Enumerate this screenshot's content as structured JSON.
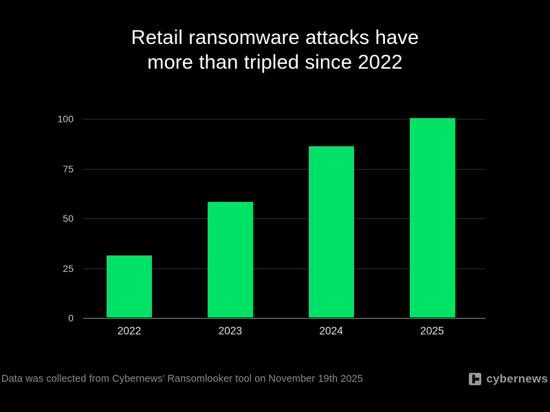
{
  "title": {
    "line1": "Retail ransomware attacks have",
    "line2": "more than tripled since 2022"
  },
  "chart_data": {
    "type": "bar",
    "title": "Retail ransomware attacks have more than tripled since 2022",
    "categories": [
      "2022",
      "2023",
      "2024",
      "2025"
    ],
    "values": [
      31,
      58,
      86,
      100
    ],
    "xlabel": "",
    "ylabel": "",
    "ylim": [
      0,
      100
    ],
    "yticks": [
      0,
      25,
      50,
      75,
      100
    ],
    "grid": true,
    "legend": false,
    "bar_color": "#00E266",
    "background_color": "#000000",
    "gridline_color": "#2f2f2f",
    "baseline_color": "#8e8e8e"
  },
  "footer": {
    "note": "Data was collected from Cybernews’ Ransomlooker tool on November 19th 2025",
    "brand": "cybernews",
    "brand_icon": "cybernews-logo-icon",
    "brand_color": "#9a9a9a"
  }
}
